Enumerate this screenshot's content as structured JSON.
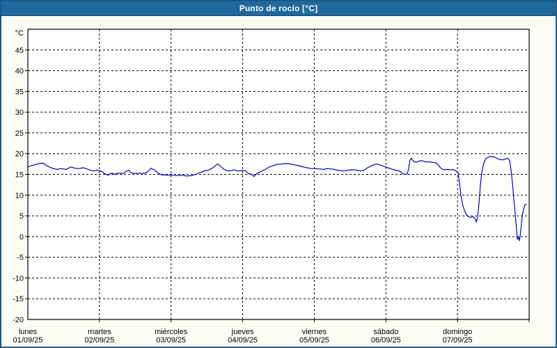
{
  "window": {
    "title": "Punto de rocío [°C]"
  },
  "colors": {
    "titlebar_bg": "#1f699c",
    "titlebar_edge": "#10436a",
    "titlebar_text": "#ffffff",
    "border": "#1a5a85",
    "page_bg": "#fcfcf4",
    "plot_bg": "#ffffff",
    "grid": "#000000",
    "axis": "#000000",
    "text": "#000000",
    "line": "#0000bf"
  },
  "chart_data": {
    "type": "line",
    "title": "Punto de rocío [°C]",
    "unit_label": "°C",
    "ylim": [
      -20,
      50
    ],
    "yticks": [
      45,
      40,
      35,
      30,
      25,
      20,
      15,
      10,
      5,
      0,
      -5,
      -10,
      -15,
      -20
    ],
    "xlim_days": [
      0,
      7
    ],
    "grid": "dashed",
    "legend": "none",
    "x_days": [
      {
        "name": "lunes",
        "date": "01/09/25"
      },
      {
        "name": "martes",
        "date": "02/09/25"
      },
      {
        "name": "miércoles",
        "date": "03/09/25"
      },
      {
        "name": "jueves",
        "date": "04/09/25"
      },
      {
        "name": "viernes",
        "date": "05/09/25"
      },
      {
        "name": "sábado",
        "date": "06/09/25"
      },
      {
        "name": "domingo",
        "date": "07/09/25"
      }
    ],
    "series": [
      {
        "name": "Punto de rocío",
        "color": "#0000bf",
        "points": [
          [
            0,
            16.8
          ],
          [
            0.068,
            17.2
          ],
          [
            0.165,
            17.6
          ],
          [
            0.214,
            17.7
          ],
          [
            0.263,
            17.1
          ],
          [
            0.321,
            16.6
          ],
          [
            0.408,
            16.2
          ],
          [
            0.467,
            16.4
          ],
          [
            0.535,
            16.2
          ],
          [
            0.603,
            16.8
          ],
          [
            0.651,
            16.5
          ],
          [
            0.71,
            16.4
          ],
          [
            0.778,
            16.6
          ],
          [
            0.846,
            16.2
          ],
          [
            0.904,
            15.8
          ],
          [
            0.972,
            16.0
          ],
          [
            1.04,
            15.6
          ],
          [
            1.069,
            15.2
          ],
          [
            1.118,
            14.8
          ],
          [
            1.167,
            15.3
          ],
          [
            1.215,
            15.0
          ],
          [
            1.264,
            15.3
          ],
          [
            1.332,
            15.2
          ],
          [
            1.381,
            15.8
          ],
          [
            1.41,
            16.0
          ],
          [
            1.439,
            15.4
          ],
          [
            1.488,
            15.2
          ],
          [
            1.556,
            15.3
          ],
          [
            1.624,
            15.2
          ],
          [
            1.672,
            15.6
          ],
          [
            1.721,
            16.5
          ],
          [
            1.77,
            16.0
          ],
          [
            1.818,
            15.3
          ],
          [
            1.867,
            14.9
          ],
          [
            1.944,
            14.8
          ],
          [
            2.013,
            14.8
          ],
          [
            2.081,
            14.7
          ],
          [
            2.149,
            14.8
          ],
          [
            2.217,
            14.6
          ],
          [
            2.285,
            14.7
          ],
          [
            2.343,
            15.0
          ],
          [
            2.402,
            15.4
          ],
          [
            2.46,
            15.8
          ],
          [
            2.518,
            16.0
          ],
          [
            2.576,
            16.5
          ],
          [
            2.625,
            17.2
          ],
          [
            2.654,
            17.5
          ],
          [
            2.693,
            16.9
          ],
          [
            2.742,
            16.2
          ],
          [
            2.79,
            15.8
          ],
          [
            2.839,
            15.9
          ],
          [
            2.878,
            16.1
          ],
          [
            2.926,
            15.8
          ],
          [
            2.985,
            15.9
          ],
          [
            3.033,
            15.9
          ],
          [
            3.082,
            15.2
          ],
          [
            3.121,
            15.0
          ],
          [
            3.16,
            14.5
          ],
          [
            3.199,
            15.2
          ],
          [
            3.247,
            15.6
          ],
          [
            3.306,
            16.1
          ],
          [
            3.364,
            16.7
          ],
          [
            3.422,
            17.1
          ],
          [
            3.481,
            17.4
          ],
          [
            3.549,
            17.5
          ],
          [
            3.607,
            17.6
          ],
          [
            3.665,
            17.5
          ],
          [
            3.724,
            17.3
          ],
          [
            3.782,
            17.1
          ],
          [
            3.84,
            16.8
          ],
          [
            3.899,
            16.6
          ],
          [
            3.957,
            16.4
          ],
          [
            4.015,
            16.4
          ],
          [
            4.074,
            16.3
          ],
          [
            4.132,
            16.2
          ],
          [
            4.181,
            16.4
          ],
          [
            4.239,
            16.3
          ],
          [
            4.297,
            16.1
          ],
          [
            4.356,
            15.9
          ],
          [
            4.414,
            15.8
          ],
          [
            4.472,
            16.0
          ],
          [
            4.531,
            16.1
          ],
          [
            4.589,
            16.0
          ],
          [
            4.647,
            15.8
          ],
          [
            4.696,
            16.0
          ],
          [
            4.744,
            16.6
          ],
          [
            4.793,
            17.0
          ],
          [
            4.841,
            17.4
          ],
          [
            4.88,
            17.5
          ],
          [
            4.929,
            17.2
          ],
          [
            4.978,
            16.9
          ],
          [
            5.026,
            16.6
          ],
          [
            5.075,
            16.3
          ],
          [
            5.133,
            16.0
          ],
          [
            5.191,
            15.8
          ],
          [
            5.23,
            15.2
          ],
          [
            5.269,
            15.0
          ],
          [
            5.299,
            15.1
          ],
          [
            5.318,
            16.5
          ],
          [
            5.337,
            18.5
          ],
          [
            5.357,
            18.9
          ],
          [
            5.386,
            18.1
          ],
          [
            5.425,
            17.9
          ],
          [
            5.464,
            18.2
          ],
          [
            5.503,
            18.3
          ],
          [
            5.551,
            18.0
          ],
          [
            5.6,
            18.0
          ],
          [
            5.649,
            17.9
          ],
          [
            5.687,
            17.8
          ],
          [
            5.726,
            17.4
          ],
          [
            5.765,
            16.5
          ],
          [
            5.804,
            16.1
          ],
          [
            5.853,
            16.2
          ],
          [
            5.901,
            16.1
          ],
          [
            5.95,
            16.1
          ],
          [
            5.979,
            15.8
          ],
          [
            6.008,
            15.3
          ],
          [
            6.028,
            13.0
          ],
          [
            6.047,
            10.0
          ],
          [
            6.067,
            8.0
          ],
          [
            6.096,
            6.3
          ],
          [
            6.125,
            5.2
          ],
          [
            6.154,
            4.8
          ],
          [
            6.183,
            4.6
          ],
          [
            6.212,
            4.8
          ],
          [
            6.242,
            4.5
          ],
          [
            6.261,
            3.5
          ],
          [
            6.28,
            4.6
          ],
          [
            6.3,
            8.0
          ],
          [
            6.319,
            12.5
          ],
          [
            6.339,
            15.5
          ],
          [
            6.368,
            17.8
          ],
          [
            6.397,
            18.8
          ],
          [
            6.436,
            19.2
          ],
          [
            6.475,
            19.3
          ],
          [
            6.514,
            19.2
          ],
          [
            6.553,
            18.8
          ],
          [
            6.592,
            18.6
          ],
          [
            6.631,
            18.5
          ],
          [
            6.67,
            18.7
          ],
          [
            6.699,
            18.9
          ],
          [
            6.728,
            18.3
          ],
          [
            6.747,
            16.0
          ],
          [
            6.767,
            13.0
          ],
          [
            6.786,
            9.0
          ],
          [
            6.806,
            5.5
          ],
          [
            6.825,
            1.5
          ],
          [
            6.835,
            -0.7
          ],
          [
            6.849,
            0.0
          ],
          [
            6.864,
            -1.0
          ],
          [
            6.883,
            1.5
          ],
          [
            6.903,
            5.0
          ],
          [
            6.922,
            6.5
          ],
          [
            6.941,
            7.7
          ],
          [
            6.961,
            7.8
          ]
        ]
      }
    ]
  }
}
